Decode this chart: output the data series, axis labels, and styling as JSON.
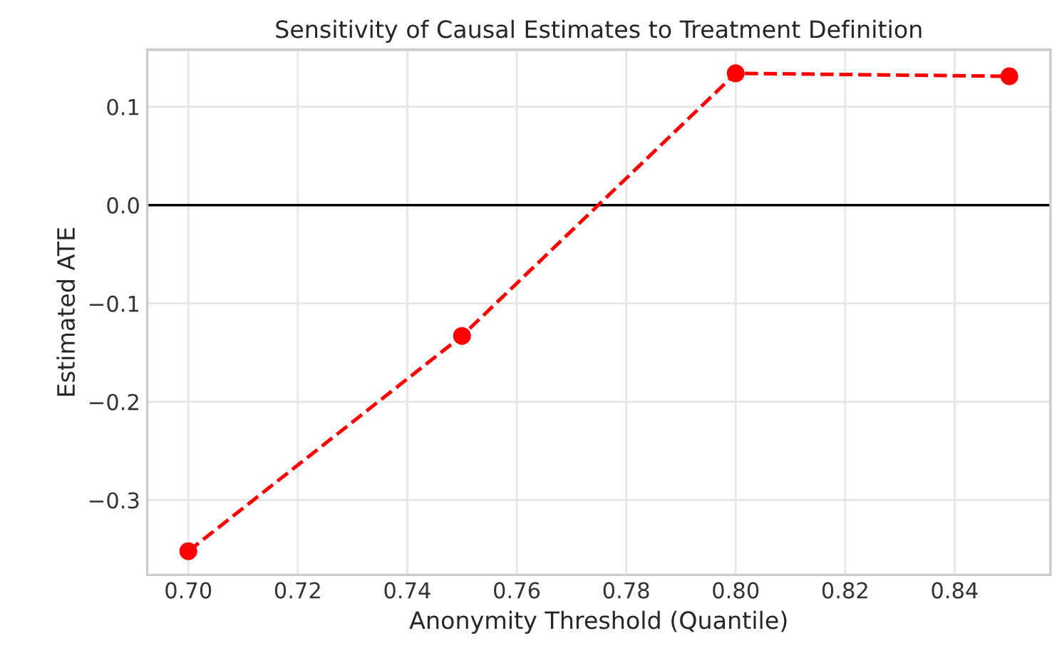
{
  "chart_data": {
    "type": "line",
    "title": "Sensitivity of Causal Estimates to Treatment Definition",
    "xlabel": "Anonymity Threshold (Quantile)",
    "ylabel": "Estimated ATE",
    "x": [
      0.7,
      0.75,
      0.8,
      0.85
    ],
    "series": [
      {
        "color": "#ff0000",
        "values": [
          -0.352,
          -0.133,
          0.134,
          0.131
        ]
      }
    ],
    "marker": "circle",
    "line_style": "dashed",
    "xlim": [
      0.6925,
      0.8575
    ],
    "xticks": [
      {
        "value": 0.7,
        "label": "0.70"
      },
      0.72,
      0.74,
      0.76,
      0.78,
      {
        "value": 0.8,
        "label": "0.80"
      },
      0.82,
      0.84
    ],
    "ylim": [
      -0.376,
      0.158
    ],
    "yticks": [
      {
        "value": -0.3,
        "label": "−0.3"
      },
      {
        "value": -0.2,
        "label": "−0.2"
      },
      {
        "value": -0.1,
        "label": "−0.1"
      },
      {
        "value": 0,
        "label": "0.0"
      },
      0.1
    ],
    "ref_lines": [
      {
        "axis": "y",
        "value": 0,
        "color": "#000000",
        "line_style": "solid"
      }
    ],
    "grid": true,
    "legend": false
  }
}
